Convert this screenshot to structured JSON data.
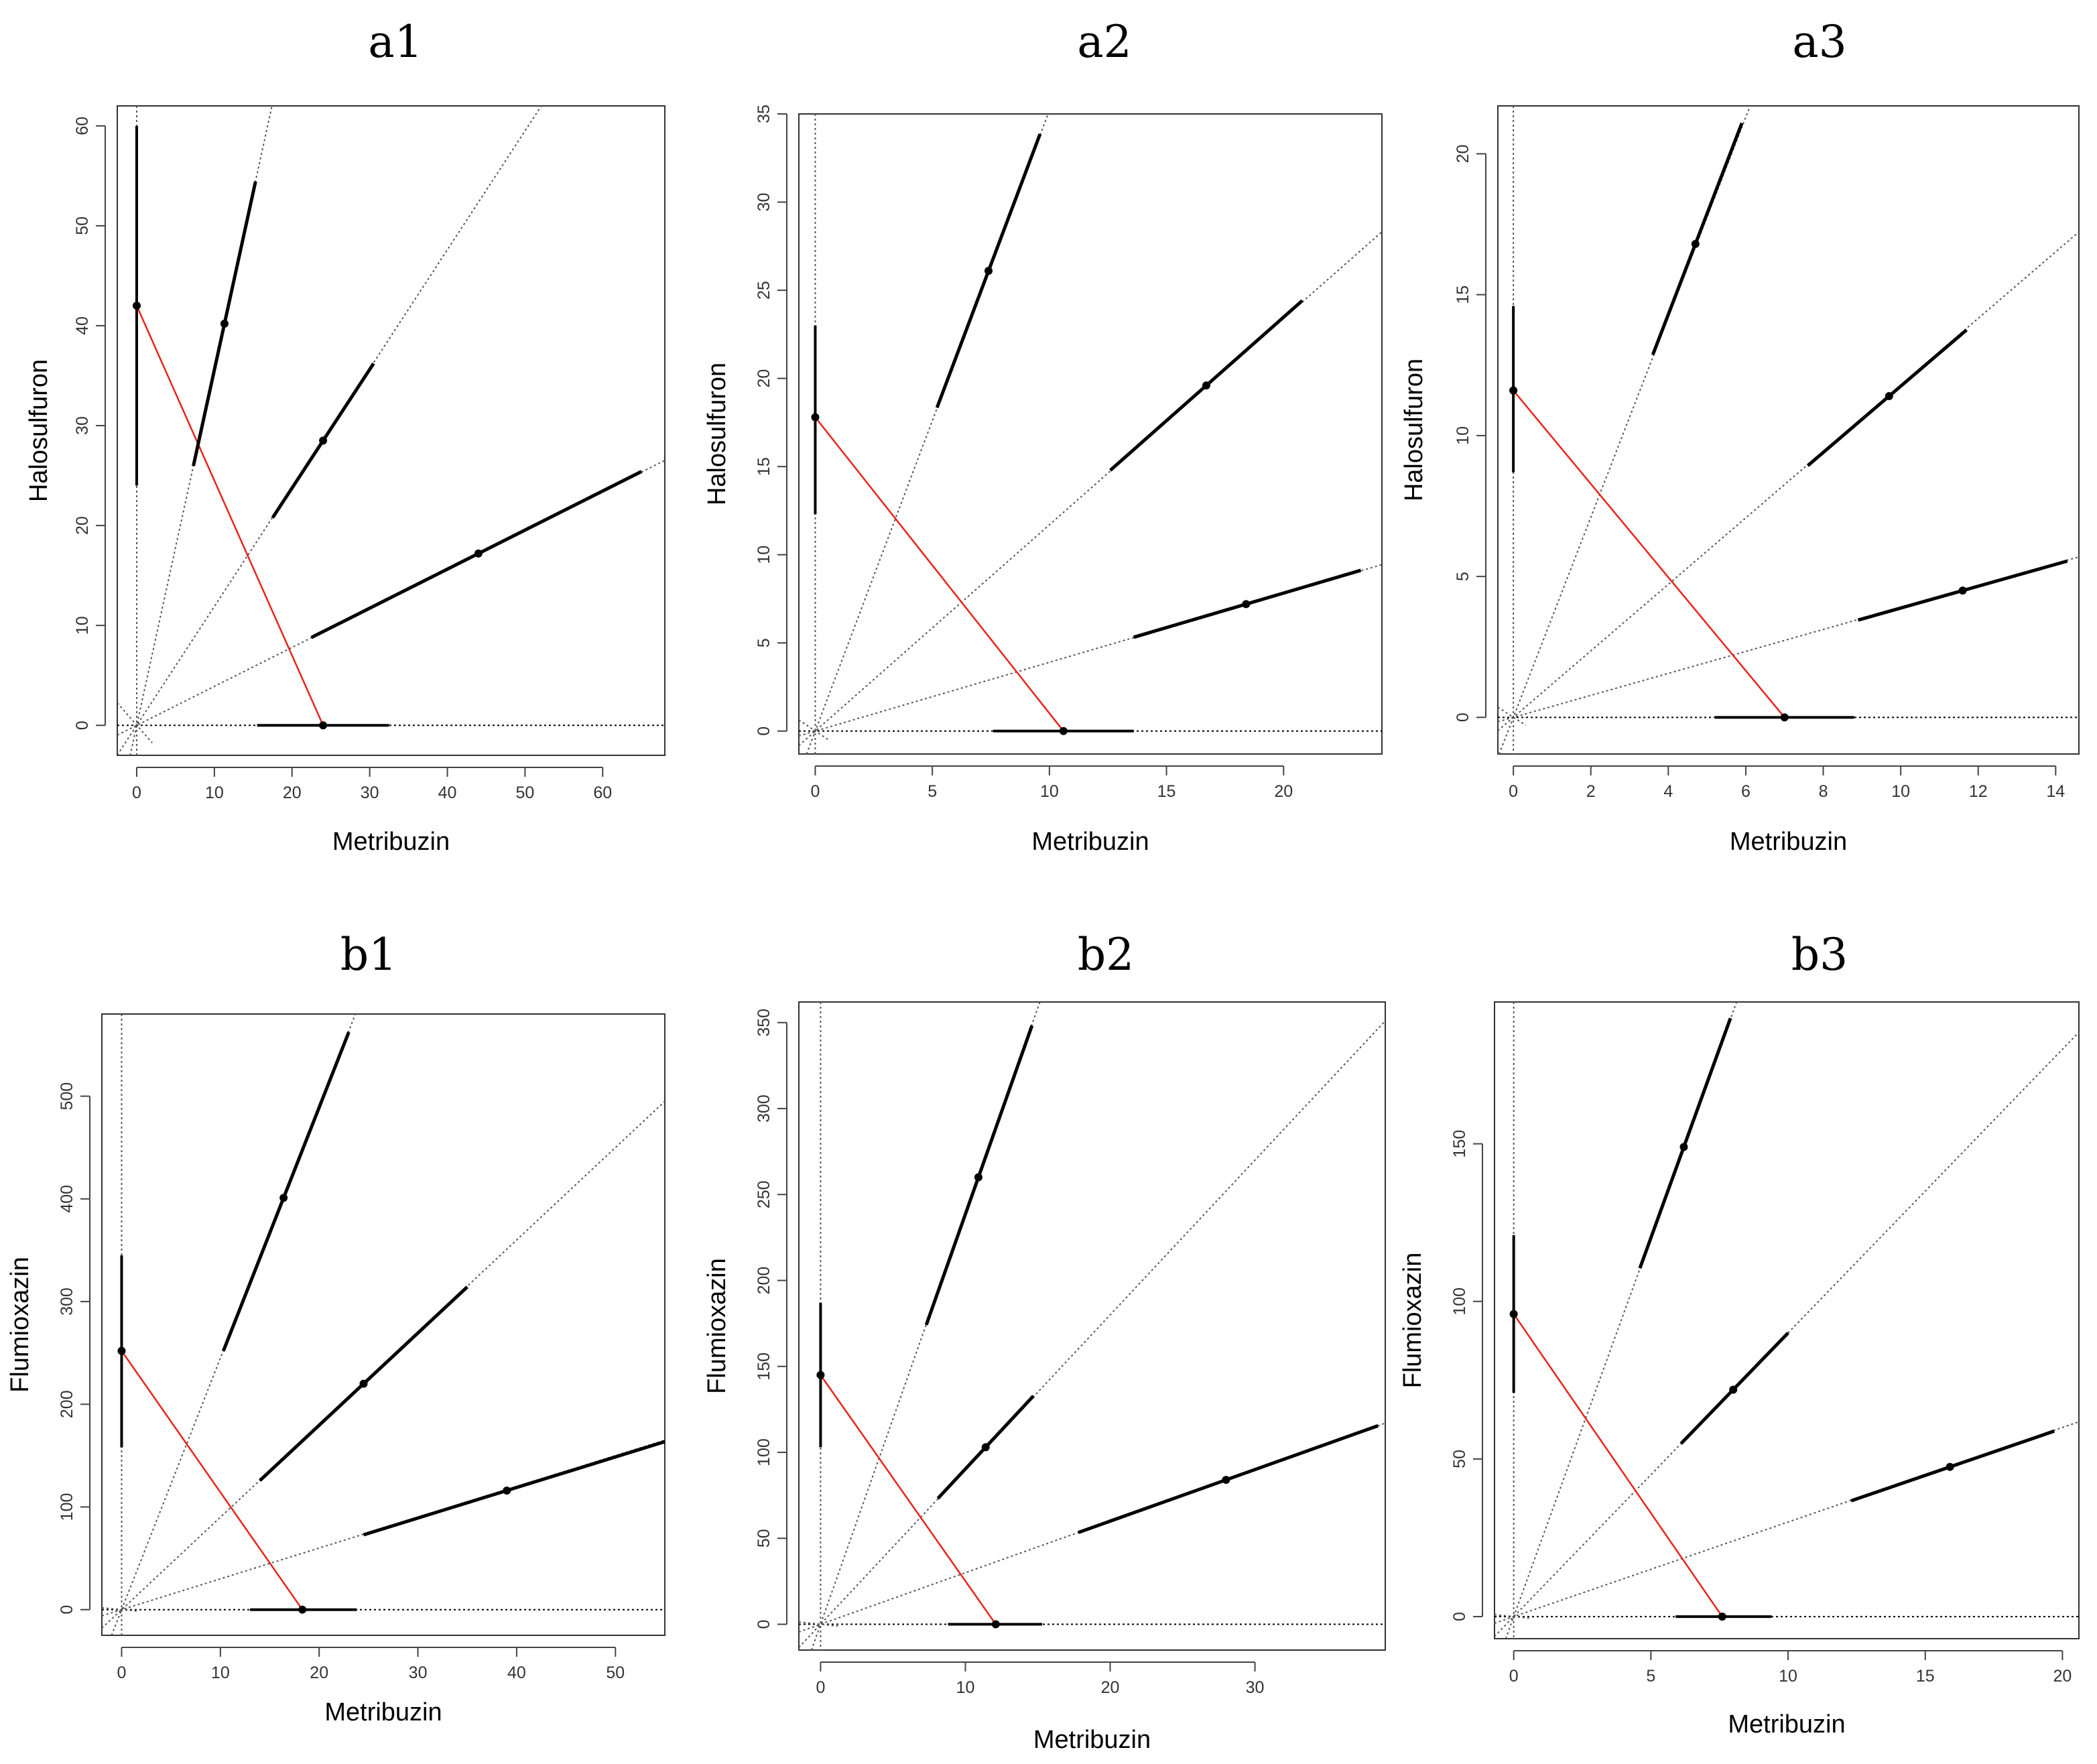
{
  "figure": {
    "description_free": true
  },
  "chart_data": [
    {
      "id": "a1",
      "type": "isobologram",
      "title": "a1",
      "xlabel": "Metribuzin",
      "ylabel": "Halosulfuron",
      "xlim": [
        -2.5,
        68
      ],
      "ylim": [
        -3,
        62
      ],
      "xticks": [
        0,
        10,
        20,
        30,
        40,
        50,
        60
      ],
      "yticks": [
        0,
        10,
        20,
        30,
        40,
        50,
        60
      ],
      "ray_slopes": [
        3.56,
        1.19,
        0.39
      ],
      "single_agents": {
        "x": 24,
        "x_ci": [
          15.5,
          32.5
        ],
        "y": 42,
        "y_ci": [
          24,
          60
        ]
      },
      "mixture_points": [
        {
          "x": 11.3,
          "y": 40.2,
          "x_ci": [
            7.3,
            15.3
          ]
        },
        {
          "x": 24.0,
          "y": 28.5,
          "x_ci": [
            17.5,
            30.5
          ]
        },
        {
          "x": 44.0,
          "y": 17.2,
          "x_ci": [
            22.5,
            65.0
          ]
        }
      ]
    },
    {
      "id": "a2",
      "type": "isobologram",
      "title": "a2",
      "xlabel": "Metribuzin",
      "ylabel": "Halosulfuron",
      "xlim": [
        -0.7,
        24.2
      ],
      "ylim": [
        -1.3,
        35
      ],
      "xticks": [
        0,
        5,
        10,
        15,
        20
      ],
      "yticks": [
        0,
        5,
        10,
        15,
        20,
        25,
        30,
        35
      ],
      "ray_slopes": [
        3.52,
        1.17,
        0.39
      ],
      "single_agents": {
        "x": 10.6,
        "x_ci": [
          7.6,
          13.6
        ],
        "y": 17.8,
        "y_ci": [
          12.3,
          23.0
        ]
      },
      "mixture_points": [
        {
          "x": 7.4,
          "y": 26.1,
          "x_ci": [
            5.2,
            9.6
          ]
        },
        {
          "x": 16.7,
          "y": 19.6,
          "x_ci": [
            12.6,
            20.8
          ]
        },
        {
          "x": 18.4,
          "y": 7.2,
          "x_ci": [
            13.6,
            23.3
          ]
        }
      ]
    },
    {
      "id": "a3",
      "type": "isobologram",
      "title": "a3",
      "xlabel": "Metribuzin",
      "ylabel": "Halosulfuron",
      "xlim": [
        -0.4,
        14.6
      ],
      "ylim": [
        -1.3,
        21.7
      ],
      "xticks": [
        0,
        2,
        4,
        6,
        8,
        10,
        12,
        14
      ],
      "yticks": [
        0,
        5,
        10,
        15,
        20
      ],
      "ray_slopes": [
        3.55,
        1.18,
        0.39
      ],
      "single_agents": {
        "x": 7.0,
        "x_ci": [
          5.2,
          8.8
        ],
        "y": 11.6,
        "y_ci": [
          8.7,
          14.6
        ]
      },
      "mixture_points": [
        {
          "x": 4.7,
          "y": 16.8,
          "x_ci": [
            3.6,
            5.9
          ]
        },
        {
          "x": 9.7,
          "y": 11.4,
          "x_ci": [
            7.6,
            11.7
          ]
        },
        {
          "x": 11.6,
          "y": 4.5,
          "x_ci": [
            8.9,
            14.3
          ]
        }
      ]
    },
    {
      "id": "b1",
      "type": "isobologram",
      "title": "b1",
      "xlabel": "Metribuzin",
      "ylabel": "Flumioxazin",
      "xlim": [
        -2,
        55
      ],
      "ylim": [
        -25,
        580
      ],
      "xticks": [
        0,
        10,
        20,
        30,
        40,
        50
      ],
      "yticks": [
        0,
        100,
        200,
        300,
        400,
        500
      ],
      "ray_slopes": [
        24.5,
        9.0,
        3.0
      ],
      "single_agents": {
        "x": 18.3,
        "x_ci": [
          13.0,
          23.8
        ],
        "y": 252,
        "y_ci": [
          158,
          345
        ]
      },
      "mixture_points": [
        {
          "x": 16.4,
          "y": 401,
          "x_ci": [
            10.3,
            23.0
          ]
        },
        {
          "x": 24.5,
          "y": 220,
          "x_ci": [
            14.0,
            35.0
          ]
        },
        {
          "x": 39.0,
          "y": 116,
          "x_ci": [
            24.5,
            55.0
          ]
        }
      ]
    },
    {
      "id": "b2",
      "type": "isobologram",
      "title": "b2",
      "xlabel": "Metribuzin",
      "ylabel": "Flumioxazin",
      "xlim": [
        -1.5,
        39
      ],
      "ylim": [
        -15,
        362
      ],
      "xticks": [
        0,
        10,
        20,
        30
      ],
      "yticks": [
        0,
        50,
        100,
        150,
        200,
        250,
        300,
        350
      ],
      "ray_slopes": [
        23.9,
        9.0,
        3.0
      ],
      "single_agents": {
        "x": 12.1,
        "x_ci": [
          8.8,
          15.3
        ],
        "y": 145,
        "y_ci": [
          103,
          187
        ]
      },
      "mixture_points": [
        {
          "x": 10.9,
          "y": 260,
          "x_ci": [
            7.3,
            14.6
          ]
        },
        {
          "x": 11.4,
          "y": 103,
          "x_ci": [
            8.1,
            14.7
          ]
        },
        {
          "x": 28.0,
          "y": 84,
          "x_ci": [
            17.8,
            38.5
          ]
        }
      ]
    },
    {
      "id": "b3",
      "type": "isobologram",
      "title": "b3",
      "xlabel": "Metribuzin",
      "ylabel": "Flumioxazin",
      "xlim": [
        -0.7,
        20.6
      ],
      "ylim": [
        -7,
        195
      ],
      "xticks": [
        0,
        5,
        10,
        15,
        20
      ],
      "yticks": [
        0,
        50,
        100,
        150
      ],
      "ray_slopes": [
        24.0,
        9.0,
        3.0
      ],
      "single_agents": {
        "x": 7.6,
        "x_ci": [
          5.9,
          9.4
        ],
        "y": 96,
        "y_ci": [
          71,
          121
        ]
      },
      "mixture_points": [
        {
          "x": 6.2,
          "y": 149,
          "x_ci": [
            4.6,
            7.9
          ]
        },
        {
          "x": 8.0,
          "y": 72,
          "x_ci": [
            6.1,
            10.0
          ]
        },
        {
          "x": 15.9,
          "y": 47.5,
          "x_ci": [
            12.3,
            19.7
          ]
        }
      ]
    }
  ],
  "colors": {
    "axis": "#000000",
    "frame": "#333333",
    "tick": "#444444",
    "guide": "#555555",
    "additivity_line": "#e8231c",
    "segment": "#000000"
  }
}
